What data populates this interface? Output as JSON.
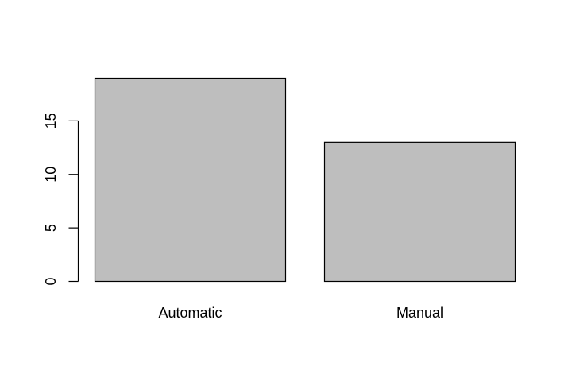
{
  "chart_data": {
    "type": "bar",
    "categories": [
      "Automatic",
      "Manual"
    ],
    "values": [
      19,
      13
    ],
    "ylim": [
      0,
      19
    ],
    "yticks": [
      0,
      5,
      10,
      15
    ],
    "ytick_labels": [
      "0",
      "5",
      "10",
      "15"
    ],
    "title": "",
    "xlabel": "",
    "ylabel": "",
    "grid": false,
    "legend": "none",
    "bar_fill": "#bebebe",
    "bar_stroke": "#000000"
  }
}
